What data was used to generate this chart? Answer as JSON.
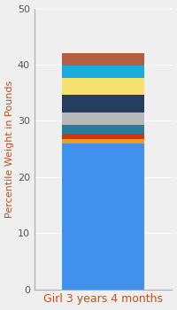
{
  "category": "Girl 3 years 4 months",
  "ylabel": "Percentile Weight in Pounds",
  "ylim": [
    0,
    50
  ],
  "yticks": [
    0,
    10,
    20,
    30,
    40,
    50
  ],
  "background_color": "#efefef",
  "bar_width": 0.6,
  "segments": [
    {
      "value": 26.0,
      "color": "#4090ee"
    },
    {
      "value": 0.8,
      "color": "#e8a020"
    },
    {
      "value": 0.9,
      "color": "#cc3a0a"
    },
    {
      "value": 1.5,
      "color": "#2a7a9a"
    },
    {
      "value": 2.3,
      "color": "#b8b8b8"
    },
    {
      "value": 3.2,
      "color": "#253d60"
    },
    {
      "value": 3.0,
      "color": "#f5e070"
    },
    {
      "value": 2.2,
      "color": "#1aabdd"
    },
    {
      "value": 2.1,
      "color": "#b06040"
    }
  ],
  "ylabel_fontsize": 8,
  "tick_fontsize": 8,
  "xlabel_fontsize": 9,
  "xlabel_color": "#c05010",
  "ylabel_color": "#c05010",
  "ytick_color": "#555555",
  "grid_color": "#ffffff",
  "spine_color": "#aaaaaa"
}
